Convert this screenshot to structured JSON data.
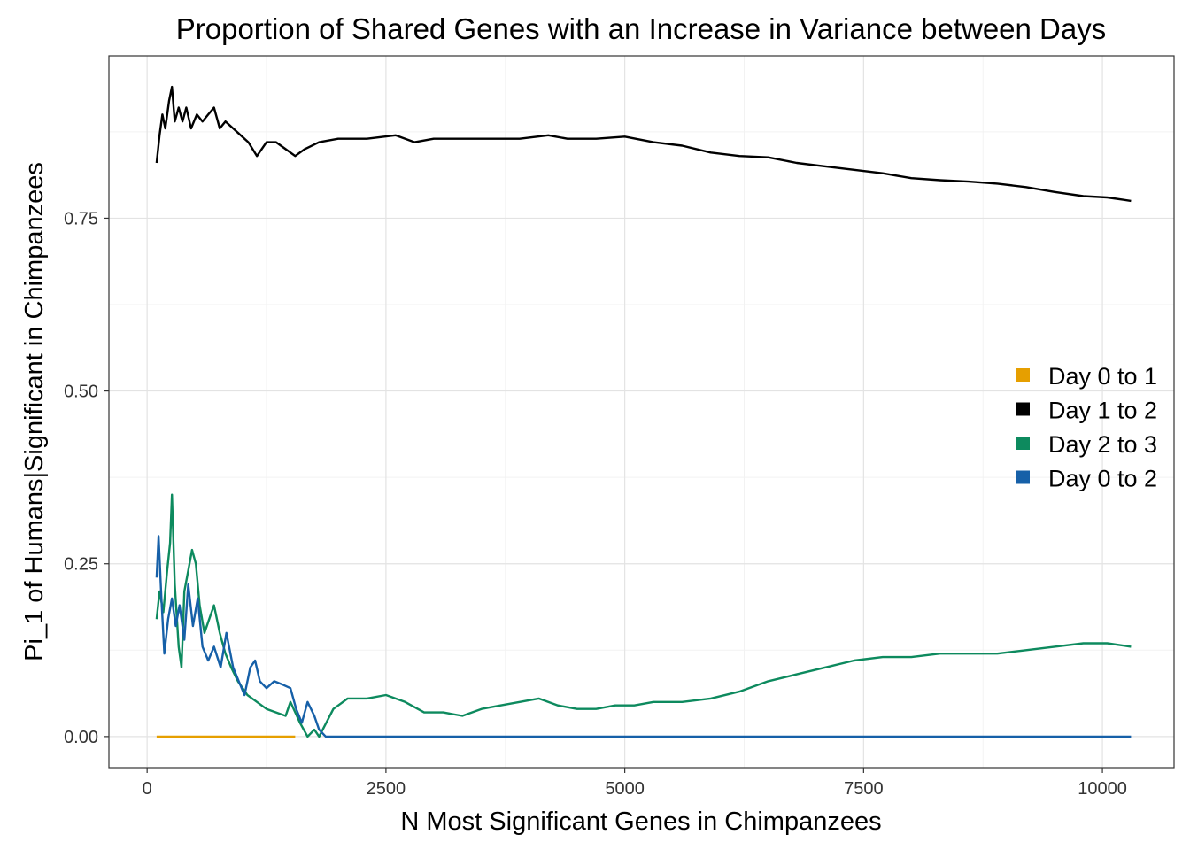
{
  "chart_data": {
    "type": "line",
    "title": "Proportion of Shared Genes with an Increase in Variance between Days",
    "xlabel": "N Most Significant Genes in Chimpanzees",
    "ylabel": "Pi_1 of Humans|Significant in Chimpanzees",
    "xlim": [
      -400,
      10750
    ],
    "ylim": [
      -0.045,
      0.985
    ],
    "x_ticks": [
      {
        "value": 0,
        "label": "0"
      },
      {
        "value": 2500,
        "label": "2500"
      },
      {
        "value": 5000,
        "label": "5000"
      },
      {
        "value": 7500,
        "label": "7500"
      },
      {
        "value": 10000,
        "label": "10000"
      }
    ],
    "y_ticks": [
      {
        "value": 0,
        "label": "0.00"
      },
      {
        "value": 0.25,
        "label": "0.25"
      },
      {
        "value": 0.5,
        "label": "0.50"
      },
      {
        "value": 0.75,
        "label": "0.75"
      }
    ],
    "grid": true,
    "legend_position": "right",
    "series": [
      {
        "name": "Day 0 to 1",
        "color": "#E69F00",
        "points": [
          [
            100,
            0
          ],
          [
            1550,
            0
          ]
        ]
      },
      {
        "name": "Day 1 to 2",
        "color": "#000000",
        "points": [
          [
            100,
            0.83
          ],
          [
            130,
            0.87
          ],
          [
            160,
            0.9
          ],
          [
            190,
            0.88
          ],
          [
            230,
            0.92
          ],
          [
            260,
            0.94
          ],
          [
            290,
            0.89
          ],
          [
            330,
            0.91
          ],
          [
            370,
            0.89
          ],
          [
            410,
            0.91
          ],
          [
            460,
            0.88
          ],
          [
            520,
            0.9
          ],
          [
            580,
            0.89
          ],
          [
            640,
            0.9
          ],
          [
            700,
            0.91
          ],
          [
            760,
            0.88
          ],
          [
            820,
            0.89
          ],
          [
            900,
            0.88
          ],
          [
            980,
            0.87
          ],
          [
            1060,
            0.86
          ],
          [
            1150,
            0.84
          ],
          [
            1250,
            0.86
          ],
          [
            1350,
            0.86
          ],
          [
            1450,
            0.85
          ],
          [
            1550,
            0.84
          ],
          [
            1650,
            0.85
          ],
          [
            1800,
            0.86
          ],
          [
            2000,
            0.865
          ],
          [
            2300,
            0.865
          ],
          [
            2600,
            0.87
          ],
          [
            2800,
            0.86
          ],
          [
            3000,
            0.865
          ],
          [
            3300,
            0.865
          ],
          [
            3600,
            0.865
          ],
          [
            3900,
            0.865
          ],
          [
            4200,
            0.87
          ],
          [
            4400,
            0.865
          ],
          [
            4700,
            0.865
          ],
          [
            5000,
            0.868
          ],
          [
            5300,
            0.86
          ],
          [
            5600,
            0.855
          ],
          [
            5900,
            0.845
          ],
          [
            6200,
            0.84
          ],
          [
            6500,
            0.838
          ],
          [
            6800,
            0.83
          ],
          [
            7100,
            0.825
          ],
          [
            7400,
            0.82
          ],
          [
            7700,
            0.815
          ],
          [
            8000,
            0.808
          ],
          [
            8300,
            0.805
          ],
          [
            8600,
            0.803
          ],
          [
            8900,
            0.8
          ],
          [
            9200,
            0.795
          ],
          [
            9500,
            0.788
          ],
          [
            9800,
            0.782
          ],
          [
            10050,
            0.78
          ],
          [
            10300,
            0.775
          ]
        ]
      },
      {
        "name": "Day 2 to 3",
        "color": "#0D8A5E",
        "points": [
          [
            100,
            0.17
          ],
          [
            130,
            0.21
          ],
          [
            170,
            0.18
          ],
          [
            210,
            0.24
          ],
          [
            240,
            0.28
          ],
          [
            260,
            0.35
          ],
          [
            290,
            0.22
          ],
          [
            330,
            0.13
          ],
          [
            360,
            0.1
          ],
          [
            390,
            0.21
          ],
          [
            430,
            0.24
          ],
          [
            470,
            0.27
          ],
          [
            510,
            0.25
          ],
          [
            550,
            0.19
          ],
          [
            600,
            0.15
          ],
          [
            650,
            0.17
          ],
          [
            700,
            0.19
          ],
          [
            760,
            0.15
          ],
          [
            820,
            0.12
          ],
          [
            880,
            0.1
          ],
          [
            950,
            0.08
          ],
          [
            1050,
            0.06
          ],
          [
            1150,
            0.05
          ],
          [
            1250,
            0.04
          ],
          [
            1350,
            0.035
          ],
          [
            1450,
            0.03
          ],
          [
            1500,
            0.05
          ],
          [
            1600,
            0.02
          ],
          [
            1680,
            0.0
          ],
          [
            1750,
            0.01
          ],
          [
            1800,
            0.0
          ],
          [
            1950,
            0.04
          ],
          [
            2100,
            0.055
          ],
          [
            2300,
            0.055
          ],
          [
            2500,
            0.06
          ],
          [
            2700,
            0.05
          ],
          [
            2900,
            0.035
          ],
          [
            3100,
            0.035
          ],
          [
            3300,
            0.03
          ],
          [
            3500,
            0.04
          ],
          [
            3700,
            0.045
          ],
          [
            3900,
            0.05
          ],
          [
            4100,
            0.055
          ],
          [
            4300,
            0.045
          ],
          [
            4500,
            0.04
          ],
          [
            4700,
            0.04
          ],
          [
            4900,
            0.045
          ],
          [
            5100,
            0.045
          ],
          [
            5300,
            0.05
          ],
          [
            5600,
            0.05
          ],
          [
            5900,
            0.055
          ],
          [
            6200,
            0.065
          ],
          [
            6500,
            0.08
          ],
          [
            6800,
            0.09
          ],
          [
            7100,
            0.1
          ],
          [
            7400,
            0.11
          ],
          [
            7700,
            0.115
          ],
          [
            8000,
            0.115
          ],
          [
            8300,
            0.12
          ],
          [
            8600,
            0.12
          ],
          [
            8900,
            0.12
          ],
          [
            9200,
            0.125
          ],
          [
            9500,
            0.13
          ],
          [
            9800,
            0.135
          ],
          [
            10050,
            0.135
          ],
          [
            10300,
            0.13
          ]
        ]
      },
      {
        "name": "Day 0 to 2",
        "color": "#1660A8",
        "points": [
          [
            100,
            0.23
          ],
          [
            120,
            0.29
          ],
          [
            150,
            0.2
          ],
          [
            180,
            0.12
          ],
          [
            220,
            0.17
          ],
          [
            260,
            0.2
          ],
          [
            300,
            0.16
          ],
          [
            340,
            0.19
          ],
          [
            390,
            0.14
          ],
          [
            430,
            0.22
          ],
          [
            480,
            0.16
          ],
          [
            530,
            0.2
          ],
          [
            580,
            0.13
          ],
          [
            640,
            0.11
          ],
          [
            700,
            0.13
          ],
          [
            770,
            0.1
          ],
          [
            830,
            0.15
          ],
          [
            900,
            0.1
          ],
          [
            960,
            0.08
          ],
          [
            1020,
            0.06
          ],
          [
            1080,
            0.1
          ],
          [
            1130,
            0.11
          ],
          [
            1180,
            0.08
          ],
          [
            1250,
            0.07
          ],
          [
            1330,
            0.08
          ],
          [
            1420,
            0.075
          ],
          [
            1500,
            0.07
          ],
          [
            1560,
            0.04
          ],
          [
            1620,
            0.02
          ],
          [
            1680,
            0.05
          ],
          [
            1750,
            0.03
          ],
          [
            1800,
            0.01
          ],
          [
            1870,
            0.0
          ],
          [
            10300,
            0.0
          ]
        ]
      }
    ]
  }
}
